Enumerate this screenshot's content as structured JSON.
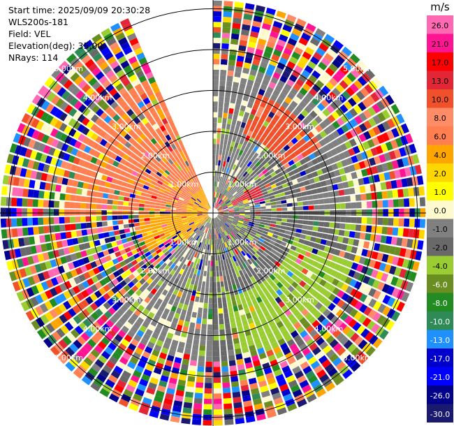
{
  "info": {
    "start_time": "Start time: 2025/09/09 20:30:28",
    "instrument": "WLS200s-181",
    "field": "Field: VEL",
    "elevation": "Elevation(deg): 35.00",
    "nrays": "NRays: 114"
  },
  "chart_data": {
    "type": "heatmap",
    "projection": "polar-ppi",
    "field": "VEL",
    "units": "m/s",
    "elevation_deg": 35.0,
    "n_rays": 114,
    "range_rings_km": [
      1.0,
      2.0,
      3.0,
      4.0,
      5.0
    ],
    "range_labels": [
      "1.00km",
      "2.00km",
      "3.00km",
      "4.00km",
      "5.00km"
    ],
    "max_range_km": 5.2,
    "data_gap_azimuth_deg": [
      337,
      360
    ],
    "sectors": [
      {
        "az_from": 180,
        "az_to": 225,
        "r_from": 0.1,
        "r_to": 5.2,
        "velocity": -1.0
      },
      {
        "az_from": 225,
        "az_to": 290,
        "r_from": 0.1,
        "r_to": 1.0,
        "velocity": 4.0
      },
      {
        "az_from": 240,
        "az_to": 275,
        "r_from": 0.6,
        "r_to": 1.8,
        "velocity": 4.0
      },
      {
        "az_from": 270,
        "az_to": 337,
        "r_from": 0.6,
        "r_to": 3.6,
        "velocity": 6.0
      },
      {
        "az_from": 290,
        "az_to": 337,
        "r_from": 0.1,
        "r_to": 0.6,
        "velocity": 4.0
      },
      {
        "az_from": 0,
        "az_to": 90,
        "r_from": 0.4,
        "r_to": 3.6,
        "velocity": -1.0
      },
      {
        "az_from": 40,
        "az_to": 80,
        "r_from": 1.0,
        "r_to": 3.0,
        "velocity": -2.0
      },
      {
        "az_from": 90,
        "az_to": 180,
        "r_from": 0.1,
        "r_to": 4.0,
        "velocity": -2.0
      },
      {
        "az_from": 110,
        "az_to": 170,
        "r_from": 2.0,
        "r_to": 5.2,
        "velocity": -4.0
      },
      {
        "az_from": 20,
        "az_to": 60,
        "r_from": 2.0,
        "r_to": 3.0,
        "velocity": 10.0
      },
      {
        "az_from": 60,
        "az_to": 70,
        "r_from": 0.5,
        "r_to": 1.2,
        "velocity": 13.0
      },
      {
        "az_from": 80,
        "az_to": 180,
        "r_from": 4.0,
        "r_to": 5.2,
        "velocity": 4.0
      },
      {
        "az_from": 0,
        "az_to": 337,
        "r_from": 3.6,
        "r_to": 5.2,
        "velocity": "mixed"
      }
    ],
    "colorbar": {
      "label": "m/s",
      "ticks": [
        26.0,
        21.0,
        17.0,
        13.0,
        10.0,
        8.0,
        6.0,
        4.0,
        2.0,
        1.0,
        0.0,
        -1.0,
        -2.0,
        -4.0,
        -6.0,
        -8.0,
        -10.0,
        -13.0,
        -17.0,
        -21.0,
        -26.0,
        -30.0
      ],
      "tick_labels": [
        "26.0",
        "21.0",
        "17.0",
        "13.0",
        "10.0",
        "8.0",
        "6.0",
        "4.0",
        "2.0",
        "1.0",
        "0.0",
        "-1.0",
        "-2.0",
        "-4.0",
        "-6.0",
        "-8.0",
        "-10.0",
        "-13.0",
        "-17.0",
        "-21.0",
        "-26.0",
        "-30.0"
      ],
      "colors": [
        "#ff69b4",
        "#ff1493",
        "#ff0000",
        "#e32636",
        "#f0502a",
        "#ff8c66",
        "#ff7f50",
        "#ffa500",
        "#ffd700",
        "#ffff00",
        "#fffacd",
        "#808080",
        "#696969",
        "#9acd32",
        "#6b8e23",
        "#228b22",
        "#2e8b57",
        "#1e90ff",
        "#0000cd",
        "#0000ff",
        "#00008b",
        "#191970"
      ]
    }
  }
}
